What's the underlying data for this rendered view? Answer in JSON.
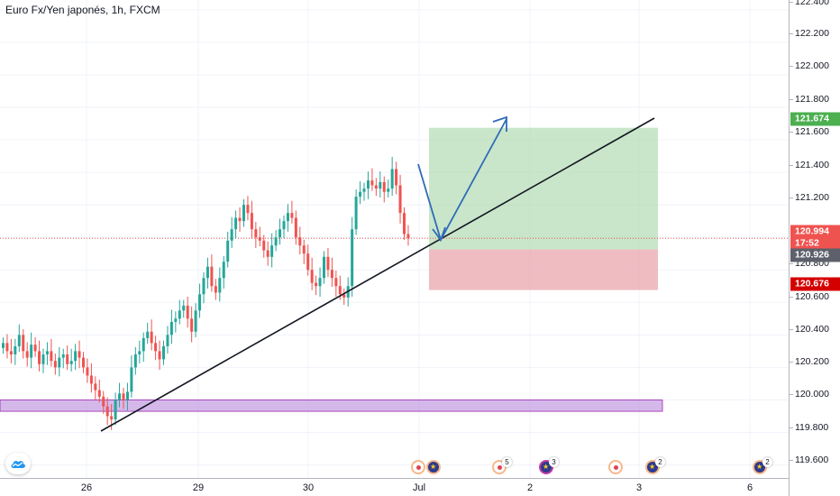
{
  "header": {
    "symbol_title": "Euro Fx/Yen japonés, 1h, FXCM"
  },
  "price_axis": {
    "ticks": [
      "122.400",
      "122.200",
      "122.000",
      "121.800",
      "121.600",
      "121.400",
      "121.200",
      "120.800",
      "120.600",
      "120.400",
      "120.200",
      "120.000",
      "119.800",
      "119.600"
    ],
    "tags": [
      {
        "label": "121.674",
        "color": "#4caf50"
      },
      {
        "label": "120.994",
        "color": "#ef5350"
      },
      {
        "label": "17:52",
        "color": "#ef5350"
      },
      {
        "label": "120.926",
        "color": "#5d606b"
      },
      {
        "label": "120.676",
        "color": "#d40000"
      }
    ]
  },
  "time_axis": {
    "ticks": [
      "26",
      "29",
      "30",
      "Jul",
      "2",
      "3",
      "6"
    ]
  },
  "events": {
    "counts": [
      "5",
      "3",
      "2",
      "2"
    ]
  },
  "colors": {
    "up_candle": "#26a69a",
    "down_candle": "#ef5350",
    "trendline": "#131722",
    "arrow": "#2e6bb8",
    "zone_profit": "#a5d6a7",
    "zone_loss": "#e8a0a8",
    "support_zone": "#b37ed9",
    "current_price_line": "#ef5350"
  },
  "chart_data": {
    "type": "candlestick",
    "title": "Euro Fx/Yen japonés, 1h, FXCM",
    "y_range": [
      119.52,
      122.46
    ],
    "current_price": 120.994,
    "long_position": {
      "target": 121.674,
      "entry": 120.926,
      "stop": 120.676
    },
    "support_zone": [
      119.93,
      120.0
    ],
    "closes": [
      120.35,
      120.3,
      120.28,
      120.33,
      120.4,
      120.3,
      120.26,
      120.34,
      120.3,
      120.22,
      120.28,
      120.3,
      120.24,
      120.2,
      120.26,
      120.28,
      120.22,
      120.24,
      120.3,
      120.26,
      120.2,
      120.15,
      120.1,
      120.06,
      120.02,
      119.96,
      119.9,
      119.88,
      120.0,
      120.04,
      120.0,
      120.05,
      120.2,
      120.28,
      120.3,
      120.38,
      120.42,
      120.35,
      120.3,
      120.25,
      120.33,
      120.4,
      120.48,
      120.5,
      120.55,
      120.58,
      120.5,
      120.42,
      120.55,
      120.65,
      120.75,
      120.82,
      120.7,
      120.66,
      120.75,
      120.85,
      120.98,
      121.05,
      121.12,
      121.1,
      121.2,
      121.15,
      121.05,
      121.0,
      120.98,
      120.92,
      120.88,
      120.95,
      121.0,
      121.05,
      121.1,
      121.15,
      121.12,
      121.0,
      120.95,
      120.9,
      120.8,
      120.72,
      120.7,
      120.75,
      120.88,
      120.8,
      120.75,
      120.7,
      120.65,
      120.63,
      120.7,
      121.05,
      121.25,
      121.28,
      121.3,
      121.35,
      121.32,
      121.3,
      121.34,
      121.28,
      121.3,
      121.42,
      121.32,
      121.15,
      121.02,
      120.994
    ]
  }
}
